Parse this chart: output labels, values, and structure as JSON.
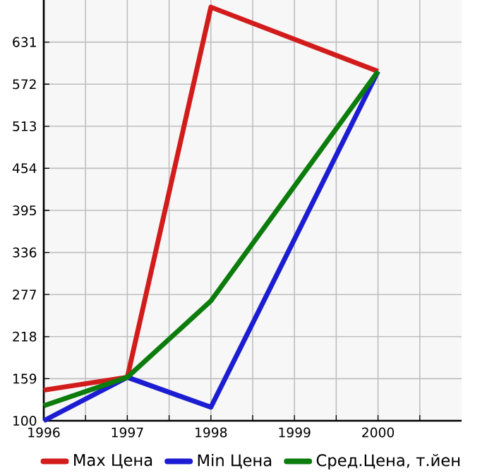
{
  "chart_data": {
    "type": "line",
    "x": [
      1996,
      1997,
      1998,
      2000
    ],
    "series": [
      {
        "name": "Max Цена",
        "color": "#d21c1c",
        "values": [
          143,
          161,
          680,
          590
        ]
      },
      {
        "name": "Min Цена",
        "color": "#1c1cd2",
        "values": [
          100,
          161,
          119,
          590
        ]
      },
      {
        "name": "Сред.Цена, т.йен",
        "color": "#0c7c0c",
        "values": [
          121,
          161,
          268,
          590
        ]
      }
    ],
    "xlim": [
      1996,
      2001
    ],
    "xticks": [
      1996,
      {
        "value": 1996.5,
        "label": null
      },
      1997,
      {
        "value": 1997.5,
        "label": null
      },
      1998,
      {
        "value": 1998.5,
        "label": null
      },
      1999,
      {
        "value": 1999.5,
        "label": null
      },
      2000,
      {
        "value": 2000.5,
        "label": null
      }
    ],
    "ylim": [
      100,
      690
    ],
    "yticks": [
      100,
      159,
      218,
      277,
      336,
      395,
      454,
      513,
      572,
      631
    ],
    "grid": true,
    "legend": "bottom",
    "marker": "none",
    "line_style": "solid"
  }
}
